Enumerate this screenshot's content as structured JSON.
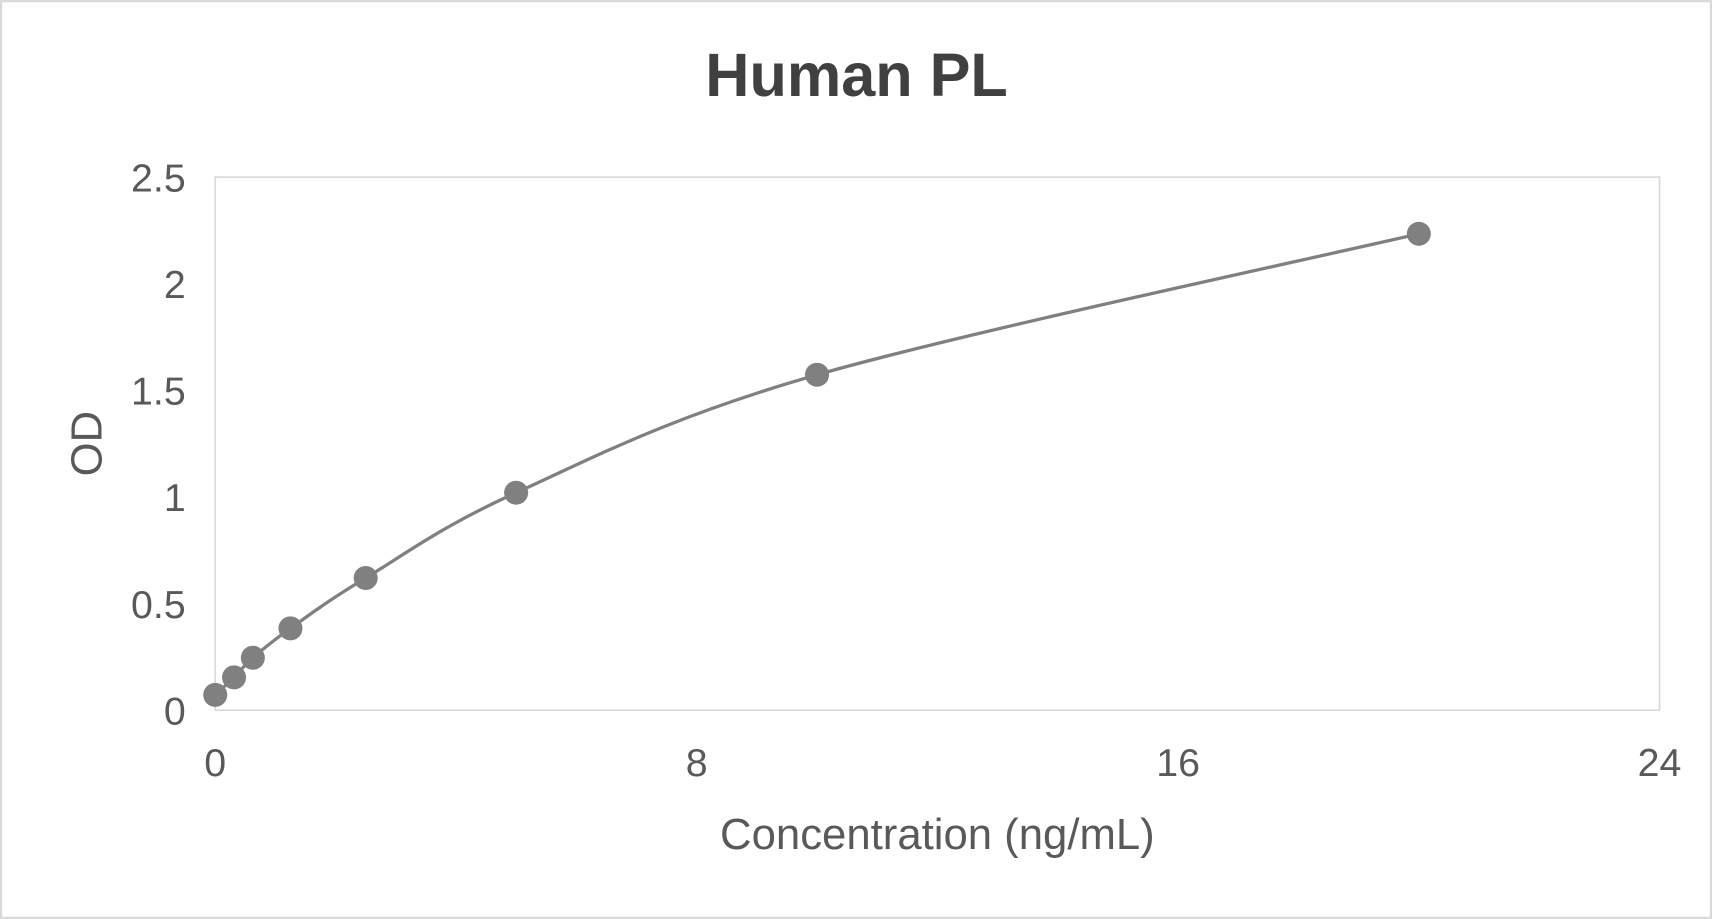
{
  "chart_data": {
    "type": "scatter",
    "title": "Human PL",
    "xlabel": "Concentration (ng/mL)",
    "ylabel": "OD",
    "xlim": [
      0,
      24
    ],
    "ylim": [
      0,
      2.5
    ],
    "x_ticks": [
      "0",
      "8",
      "16",
      "24"
    ],
    "y_ticks": [
      "0",
      "0.5",
      "1",
      "1.5",
      "2",
      "2.5"
    ],
    "grid": false,
    "legend": "none",
    "smoothed_line": true,
    "series": [
      {
        "x": [
          0,
          0.3125,
          0.625,
          1.25,
          2.5,
          5,
          10,
          20
        ],
        "y": [
          0.072,
          0.154,
          0.246,
          0.384,
          0.62,
          1.02,
          1.573,
          2.234
        ],
        "color": "#808080"
      }
    ]
  }
}
